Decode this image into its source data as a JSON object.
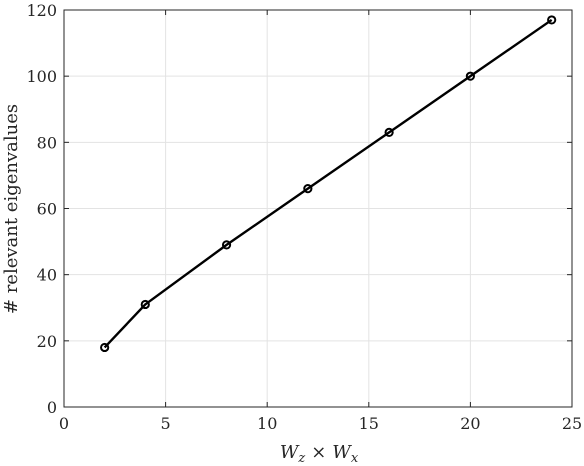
{
  "chart_data": {
    "type": "line",
    "title": "",
    "xlabel": {
      "main1": "W",
      "sub1": "z",
      "op": "×",
      "main2": "W",
      "sub2": "x"
    },
    "ylabel": "# relevant eigenvalues",
    "xlim": [
      0,
      25
    ],
    "ylim": [
      0,
      120
    ],
    "xticks": [
      0,
      5,
      10,
      15,
      20,
      25
    ],
    "yticks": [
      0,
      20,
      40,
      60,
      80,
      100,
      120
    ],
    "grid": true,
    "marker": "circle",
    "line_color": "#000000",
    "series": [
      {
        "x": [
          2,
          4,
          8,
          12,
          16,
          20,
          24
        ],
        "y": [
          18,
          31,
          49,
          66,
          83,
          100,
          117
        ]
      }
    ]
  }
}
